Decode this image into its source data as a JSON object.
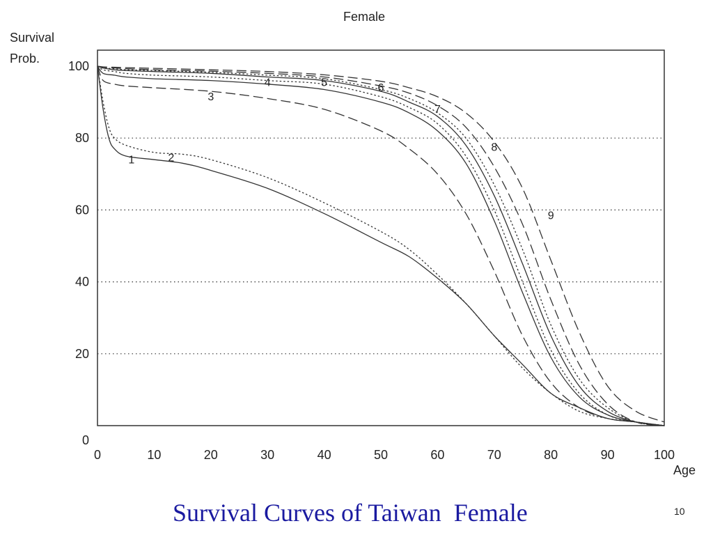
{
  "slide": {
    "caption": "Survival Curves of Taiwan  Female",
    "number": "10"
  },
  "chart_data": {
    "type": "line",
    "title": "Female",
    "ylabel_line1": "Survival",
    "ylabel_line2": "Prob.",
    "xlabel": "Age",
    "xlim": [
      0,
      100
    ],
    "ylim": [
      0,
      100
    ],
    "xticks": [
      "0",
      "10",
      "20",
      "30",
      "40",
      "50",
      "60",
      "70",
      "80",
      "90",
      "100"
    ],
    "yticks": [
      "0",
      "20",
      "40",
      "60",
      "80",
      "100"
    ],
    "grid": "horizontal dotted at 20, 40, 60, 80",
    "series": [
      {
        "name": "1",
        "style": "solid",
        "label_at": [
          6,
          73
        ],
        "x": [
          0,
          1,
          2,
          3,
          5,
          10,
          15,
          20,
          30,
          40,
          50,
          55,
          60,
          65,
          70,
          75,
          80,
          85,
          90,
          95,
          100
        ],
        "y": [
          100,
          88,
          80,
          77,
          75,
          74,
          73,
          71,
          66,
          59,
          51,
          47,
          41,
          34,
          25,
          17,
          9,
          5,
          2,
          1,
          0
        ]
      },
      {
        "name": "2",
        "style": "dotted",
        "label_at": [
          13,
          73.5
        ],
        "x": [
          0,
          1,
          2,
          3,
          5,
          10,
          15,
          20,
          30,
          40,
          50,
          55,
          60,
          65,
          70,
          75,
          80,
          85,
          90,
          95,
          100
        ],
        "y": [
          100,
          90,
          83,
          80,
          78,
          76,
          75.5,
          74,
          69,
          62,
          54,
          49,
          42,
          34,
          25,
          16,
          9,
          4,
          2,
          1,
          0
        ]
      },
      {
        "name": "3",
        "style": "dashed",
        "label_at": [
          20,
          90.5
        ],
        "x": [
          0,
          1,
          3,
          5,
          10,
          20,
          30,
          40,
          50,
          55,
          60,
          65,
          70,
          75,
          80,
          85,
          90,
          95,
          100
        ],
        "y": [
          100,
          96,
          95,
          94.5,
          94,
          93,
          91,
          88,
          82,
          77,
          70,
          59,
          43,
          25,
          12,
          5,
          2,
          1,
          0
        ]
      },
      {
        "name": "4",
        "style": "solid",
        "label_at": [
          30,
          94.5
        ],
        "x": [
          0,
          1,
          3,
          5,
          10,
          20,
          30,
          40,
          50,
          55,
          60,
          65,
          70,
          75,
          80,
          85,
          90,
          95,
          100
        ],
        "y": [
          100,
          98,
          97.5,
          97,
          96.5,
          96,
          95,
          93.5,
          90,
          87,
          82,
          73,
          57,
          37,
          19,
          8,
          3,
          1,
          0
        ]
      },
      {
        "name": "5",
        "style": "dotted",
        "label_at": [
          40,
          94.5
        ],
        "x": [
          0,
          1,
          3,
          5,
          10,
          20,
          30,
          40,
          50,
          55,
          60,
          65,
          70,
          75,
          80,
          85,
          90,
          95,
          100
        ],
        "y": [
          100,
          99,
          98.5,
          98,
          97.5,
          97,
          96,
          95,
          91.5,
          88.5,
          84,
          75,
          60,
          40,
          21,
          9,
          3,
          1,
          0
        ]
      },
      {
        "name": "6",
        "style": "solid",
        "label_at": [
          50,
          93
        ],
        "x": [
          0,
          1,
          3,
          5,
          10,
          20,
          30,
          40,
          50,
          55,
          60,
          65,
          70,
          75,
          80,
          85,
          90,
          95,
          100
        ],
        "y": [
          100,
          99.5,
          99,
          98.8,
          98.5,
          98,
          97,
          96,
          93,
          90,
          86,
          78,
          64,
          45,
          25,
          11,
          4,
          1,
          0
        ]
      },
      {
        "name": "7",
        "style": "dotted",
        "label_at": [
          60,
          87
        ],
        "x": [
          0,
          1,
          3,
          5,
          10,
          20,
          30,
          40,
          50,
          55,
          60,
          65,
          70,
          75,
          80,
          85,
          90,
          95,
          100
        ],
        "y": [
          100,
          99.5,
          99.3,
          99,
          98.8,
          98.3,
          97.5,
          96.5,
          93.5,
          91,
          87,
          80,
          67,
          49,
          28,
          13,
          5,
          1,
          0
        ]
      },
      {
        "name": "8",
        "style": "dashed",
        "label_at": [
          70,
          76.5
        ],
        "x": [
          0,
          1,
          3,
          5,
          10,
          20,
          30,
          40,
          50,
          55,
          60,
          65,
          70,
          75,
          80,
          85,
          90,
          95,
          100
        ],
        "y": [
          100,
          99.6,
          99.5,
          99.3,
          99,
          98.6,
          98,
          97,
          94.5,
          92.5,
          89,
          83,
          72,
          56,
          35,
          17,
          6,
          1,
          0
        ]
      },
      {
        "name": "9",
        "style": "dashed",
        "label_at": [
          80,
          57.5
        ],
        "x": [
          0,
          1,
          3,
          5,
          10,
          20,
          30,
          40,
          50,
          55,
          60,
          65,
          70,
          75,
          80,
          85,
          90,
          95,
          100
        ],
        "y": [
          100,
          99.8,
          99.7,
          99.6,
          99.4,
          99,
          98.5,
          97.6,
          95.8,
          94,
          91.5,
          87,
          79,
          66,
          46,
          26,
          11,
          4,
          1
        ]
      }
    ]
  }
}
